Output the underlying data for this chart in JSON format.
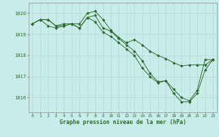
{
  "title": "Graphe pression niveau de la mer (hPa)",
  "background_color": "#c8ecea",
  "grid_color": "#b0d8d0",
  "line_color": "#2d6b2d",
  "xlim": [
    -0.5,
    23.5
  ],
  "ylim": [
    1015.3,
    1020.5
  ],
  "yticks": [
    1016,
    1017,
    1018,
    1019,
    1020
  ],
  "xticks": [
    0,
    1,
    2,
    3,
    4,
    5,
    6,
    7,
    8,
    9,
    10,
    11,
    12,
    13,
    14,
    15,
    16,
    17,
    18,
    19,
    20,
    21,
    22,
    23
  ],
  "series": [
    [
      1019.5,
      1019.7,
      1019.7,
      1019.4,
      1019.5,
      1019.5,
      1019.5,
      1020.0,
      1020.1,
      1019.7,
      1019.2,
      1018.85,
      1018.6,
      1018.75,
      1018.5,
      1018.2,
      1018.0,
      1017.85,
      1017.65,
      1017.5,
      1017.55,
      1017.55,
      1017.55,
      1017.8
    ],
    [
      1019.5,
      1019.7,
      1019.7,
      1019.4,
      1019.4,
      1019.5,
      1019.3,
      1019.8,
      1019.9,
      1019.3,
      1019.15,
      1018.8,
      1018.5,
      1018.2,
      1017.75,
      1017.15,
      1016.75,
      1016.8,
      1016.4,
      1016.0,
      1015.85,
      1016.35,
      1017.8,
      1017.8
    ],
    [
      1019.5,
      1019.7,
      1019.4,
      1019.3,
      1019.4,
      1019.5,
      1019.3,
      1019.8,
      1019.6,
      1019.1,
      1018.9,
      1018.6,
      1018.3,
      1018.0,
      1017.4,
      1017.0,
      1016.7,
      1016.8,
      1016.2,
      1015.8,
      1015.8,
      1016.2,
      1017.3,
      1017.8
    ]
  ]
}
